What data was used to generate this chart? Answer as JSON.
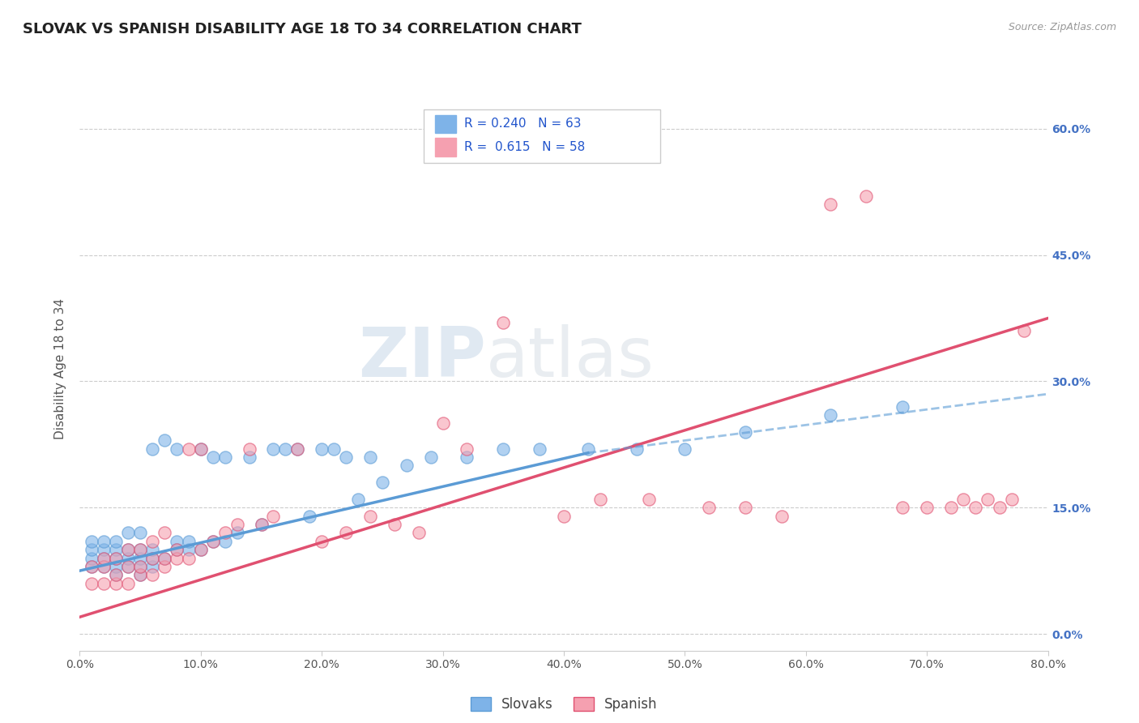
{
  "title": "SLOVAK VS SPANISH DISABILITY AGE 18 TO 34 CORRELATION CHART",
  "source": "Source: ZipAtlas.com",
  "ylabel": "Disability Age 18 to 34",
  "xlim": [
    0.0,
    0.8
  ],
  "ylim": [
    -0.02,
    0.65
  ],
  "xticks": [
    0.0,
    0.1,
    0.2,
    0.3,
    0.4,
    0.5,
    0.6,
    0.7,
    0.8
  ],
  "xtick_labels": [
    "0.0%",
    "10.0%",
    "20.0%",
    "30.0%",
    "40.0%",
    "50.0%",
    "60.0%",
    "70.0%",
    "80.0%"
  ],
  "ytick_right_vals": [
    0.0,
    0.15,
    0.3,
    0.45,
    0.6
  ],
  "ytick_right_labels": [
    "0.0%",
    "15.0%",
    "30.0%",
    "45.0%",
    "60.0%"
  ],
  "slovak_color": "#7EB3E8",
  "slovak_edge_color": "#5B9BD5",
  "spanish_color": "#F5A0B0",
  "spanish_edge_color": "#E05070",
  "slovak_R": 0.24,
  "slovak_N": 63,
  "spanish_R": 0.615,
  "spanish_N": 58,
  "watermark": "ZIPatlas",
  "background_color": "#FFFFFF",
  "grid_color": "#CCCCCC",
  "slovak_x": [
    0.01,
    0.01,
    0.01,
    0.01,
    0.02,
    0.02,
    0.02,
    0.02,
    0.03,
    0.03,
    0.03,
    0.03,
    0.03,
    0.04,
    0.04,
    0.04,
    0.04,
    0.05,
    0.05,
    0.05,
    0.05,
    0.05,
    0.06,
    0.06,
    0.06,
    0.06,
    0.07,
    0.07,
    0.08,
    0.08,
    0.08,
    0.09,
    0.09,
    0.1,
    0.1,
    0.11,
    0.11,
    0.12,
    0.12,
    0.13,
    0.14,
    0.15,
    0.16,
    0.17,
    0.18,
    0.19,
    0.2,
    0.21,
    0.22,
    0.23,
    0.24,
    0.25,
    0.27,
    0.29,
    0.32,
    0.35,
    0.38,
    0.42,
    0.46,
    0.5,
    0.55,
    0.62,
    0.68
  ],
  "slovak_y": [
    0.08,
    0.09,
    0.1,
    0.11,
    0.08,
    0.09,
    0.1,
    0.11,
    0.07,
    0.08,
    0.09,
    0.1,
    0.11,
    0.08,
    0.09,
    0.1,
    0.12,
    0.07,
    0.08,
    0.09,
    0.1,
    0.12,
    0.08,
    0.09,
    0.1,
    0.22,
    0.09,
    0.23,
    0.1,
    0.11,
    0.22,
    0.1,
    0.11,
    0.1,
    0.22,
    0.11,
    0.21,
    0.11,
    0.21,
    0.12,
    0.21,
    0.13,
    0.22,
    0.22,
    0.22,
    0.14,
    0.22,
    0.22,
    0.21,
    0.16,
    0.21,
    0.18,
    0.2,
    0.21,
    0.21,
    0.22,
    0.22,
    0.22,
    0.22,
    0.22,
    0.24,
    0.26,
    0.27
  ],
  "spanish_x": [
    0.01,
    0.01,
    0.02,
    0.02,
    0.02,
    0.03,
    0.03,
    0.03,
    0.04,
    0.04,
    0.04,
    0.05,
    0.05,
    0.05,
    0.06,
    0.06,
    0.06,
    0.07,
    0.07,
    0.07,
    0.08,
    0.08,
    0.09,
    0.09,
    0.1,
    0.1,
    0.11,
    0.12,
    0.13,
    0.14,
    0.15,
    0.16,
    0.18,
    0.2,
    0.22,
    0.24,
    0.26,
    0.28,
    0.3,
    0.32,
    0.35,
    0.4,
    0.43,
    0.47,
    0.52,
    0.55,
    0.58,
    0.62,
    0.65,
    0.68,
    0.7,
    0.72,
    0.73,
    0.74,
    0.75,
    0.76,
    0.77,
    0.78
  ],
  "spanish_y": [
    0.06,
    0.08,
    0.06,
    0.08,
    0.09,
    0.06,
    0.07,
    0.09,
    0.06,
    0.08,
    0.1,
    0.07,
    0.08,
    0.1,
    0.07,
    0.09,
    0.11,
    0.08,
    0.09,
    0.12,
    0.09,
    0.1,
    0.09,
    0.22,
    0.1,
    0.22,
    0.11,
    0.12,
    0.13,
    0.22,
    0.13,
    0.14,
    0.22,
    0.11,
    0.12,
    0.14,
    0.13,
    0.12,
    0.25,
    0.22,
    0.37,
    0.14,
    0.16,
    0.16,
    0.15,
    0.15,
    0.14,
    0.51,
    0.52,
    0.15,
    0.15,
    0.15,
    0.16,
    0.15,
    0.16,
    0.15,
    0.16,
    0.36
  ],
  "sk_line_x0": 0.0,
  "sk_line_x1": 0.42,
  "sk_line_x2": 0.8,
  "sk_line_y0": 0.075,
  "sk_line_y1": 0.215,
  "sk_line_y2": 0.285,
  "sp_line_x0": 0.0,
  "sp_line_x1": 0.8,
  "sp_line_y0": 0.02,
  "sp_line_y1": 0.375
}
